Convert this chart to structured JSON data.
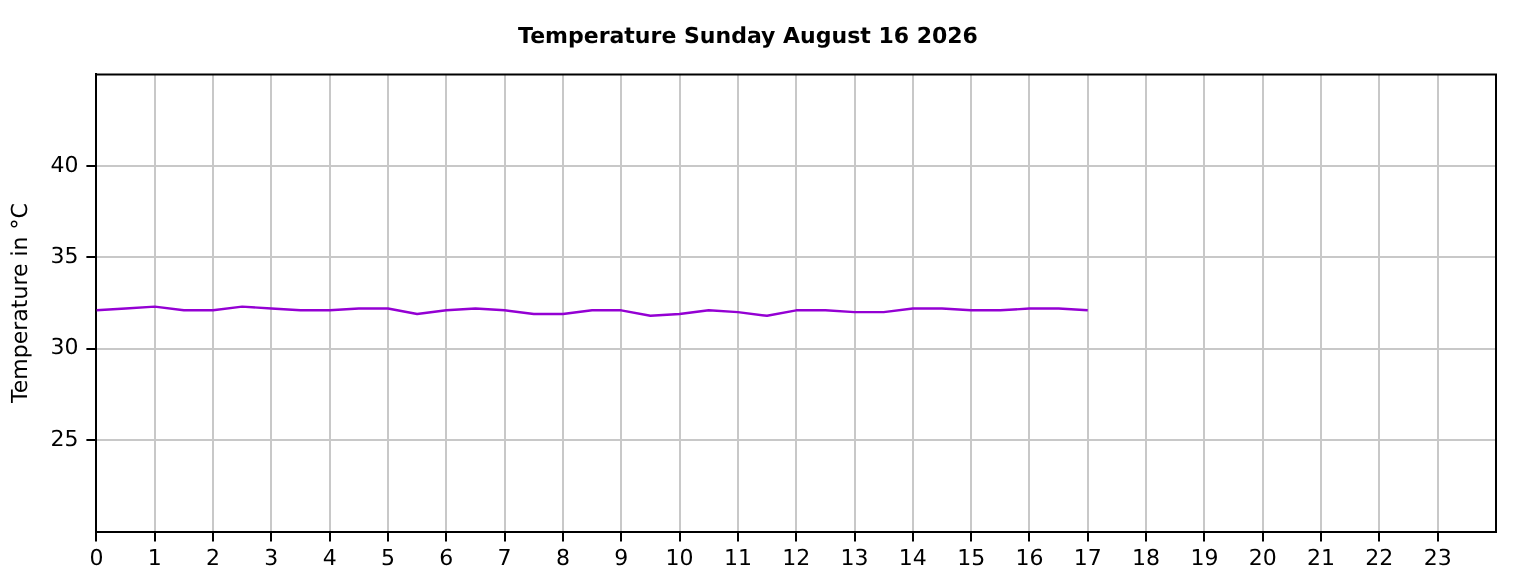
{
  "chart_data": {
    "type": "line",
    "title": "Temperature Sunday August 16 2026",
    "ylabel": "Temperature in °C",
    "x": [
      0,
      0.5,
      1,
      1.5,
      2,
      2.5,
      3,
      3.5,
      4,
      4.5,
      5,
      5.5,
      6,
      6.5,
      7,
      7.5,
      8,
      8.5,
      9,
      9.5,
      10,
      10.5,
      11,
      11.5,
      12,
      12.5,
      13,
      13.5,
      14,
      14.5,
      15,
      15.5,
      16,
      16.5,
      17
    ],
    "series": [
      {
        "color": "#9400d3",
        "values": [
          32.1,
          32.2,
          32.3,
          32.1,
          32.1,
          32.3,
          32.2,
          32.1,
          32.1,
          32.2,
          32.2,
          31.9,
          32.1,
          32.2,
          32.1,
          31.9,
          31.9,
          32.1,
          32.1,
          31.8,
          31.9,
          32.1,
          32.0,
          31.8,
          32.1,
          32.1,
          32.0,
          32.0,
          32.2,
          32.2,
          32.1,
          32.1,
          32.2,
          32.2,
          32.1
        ]
      }
    ],
    "xlim": [
      0,
      24
    ],
    "xticks": [
      0,
      1,
      2,
      3,
      4,
      5,
      6,
      7,
      8,
      9,
      10,
      11,
      12,
      13,
      14,
      15,
      16,
      17,
      18,
      19,
      20,
      21,
      22,
      23
    ],
    "ylim": [
      20,
      45
    ],
    "yticks": [
      25,
      30,
      35,
      40
    ],
    "grid": true,
    "legend": false
  }
}
